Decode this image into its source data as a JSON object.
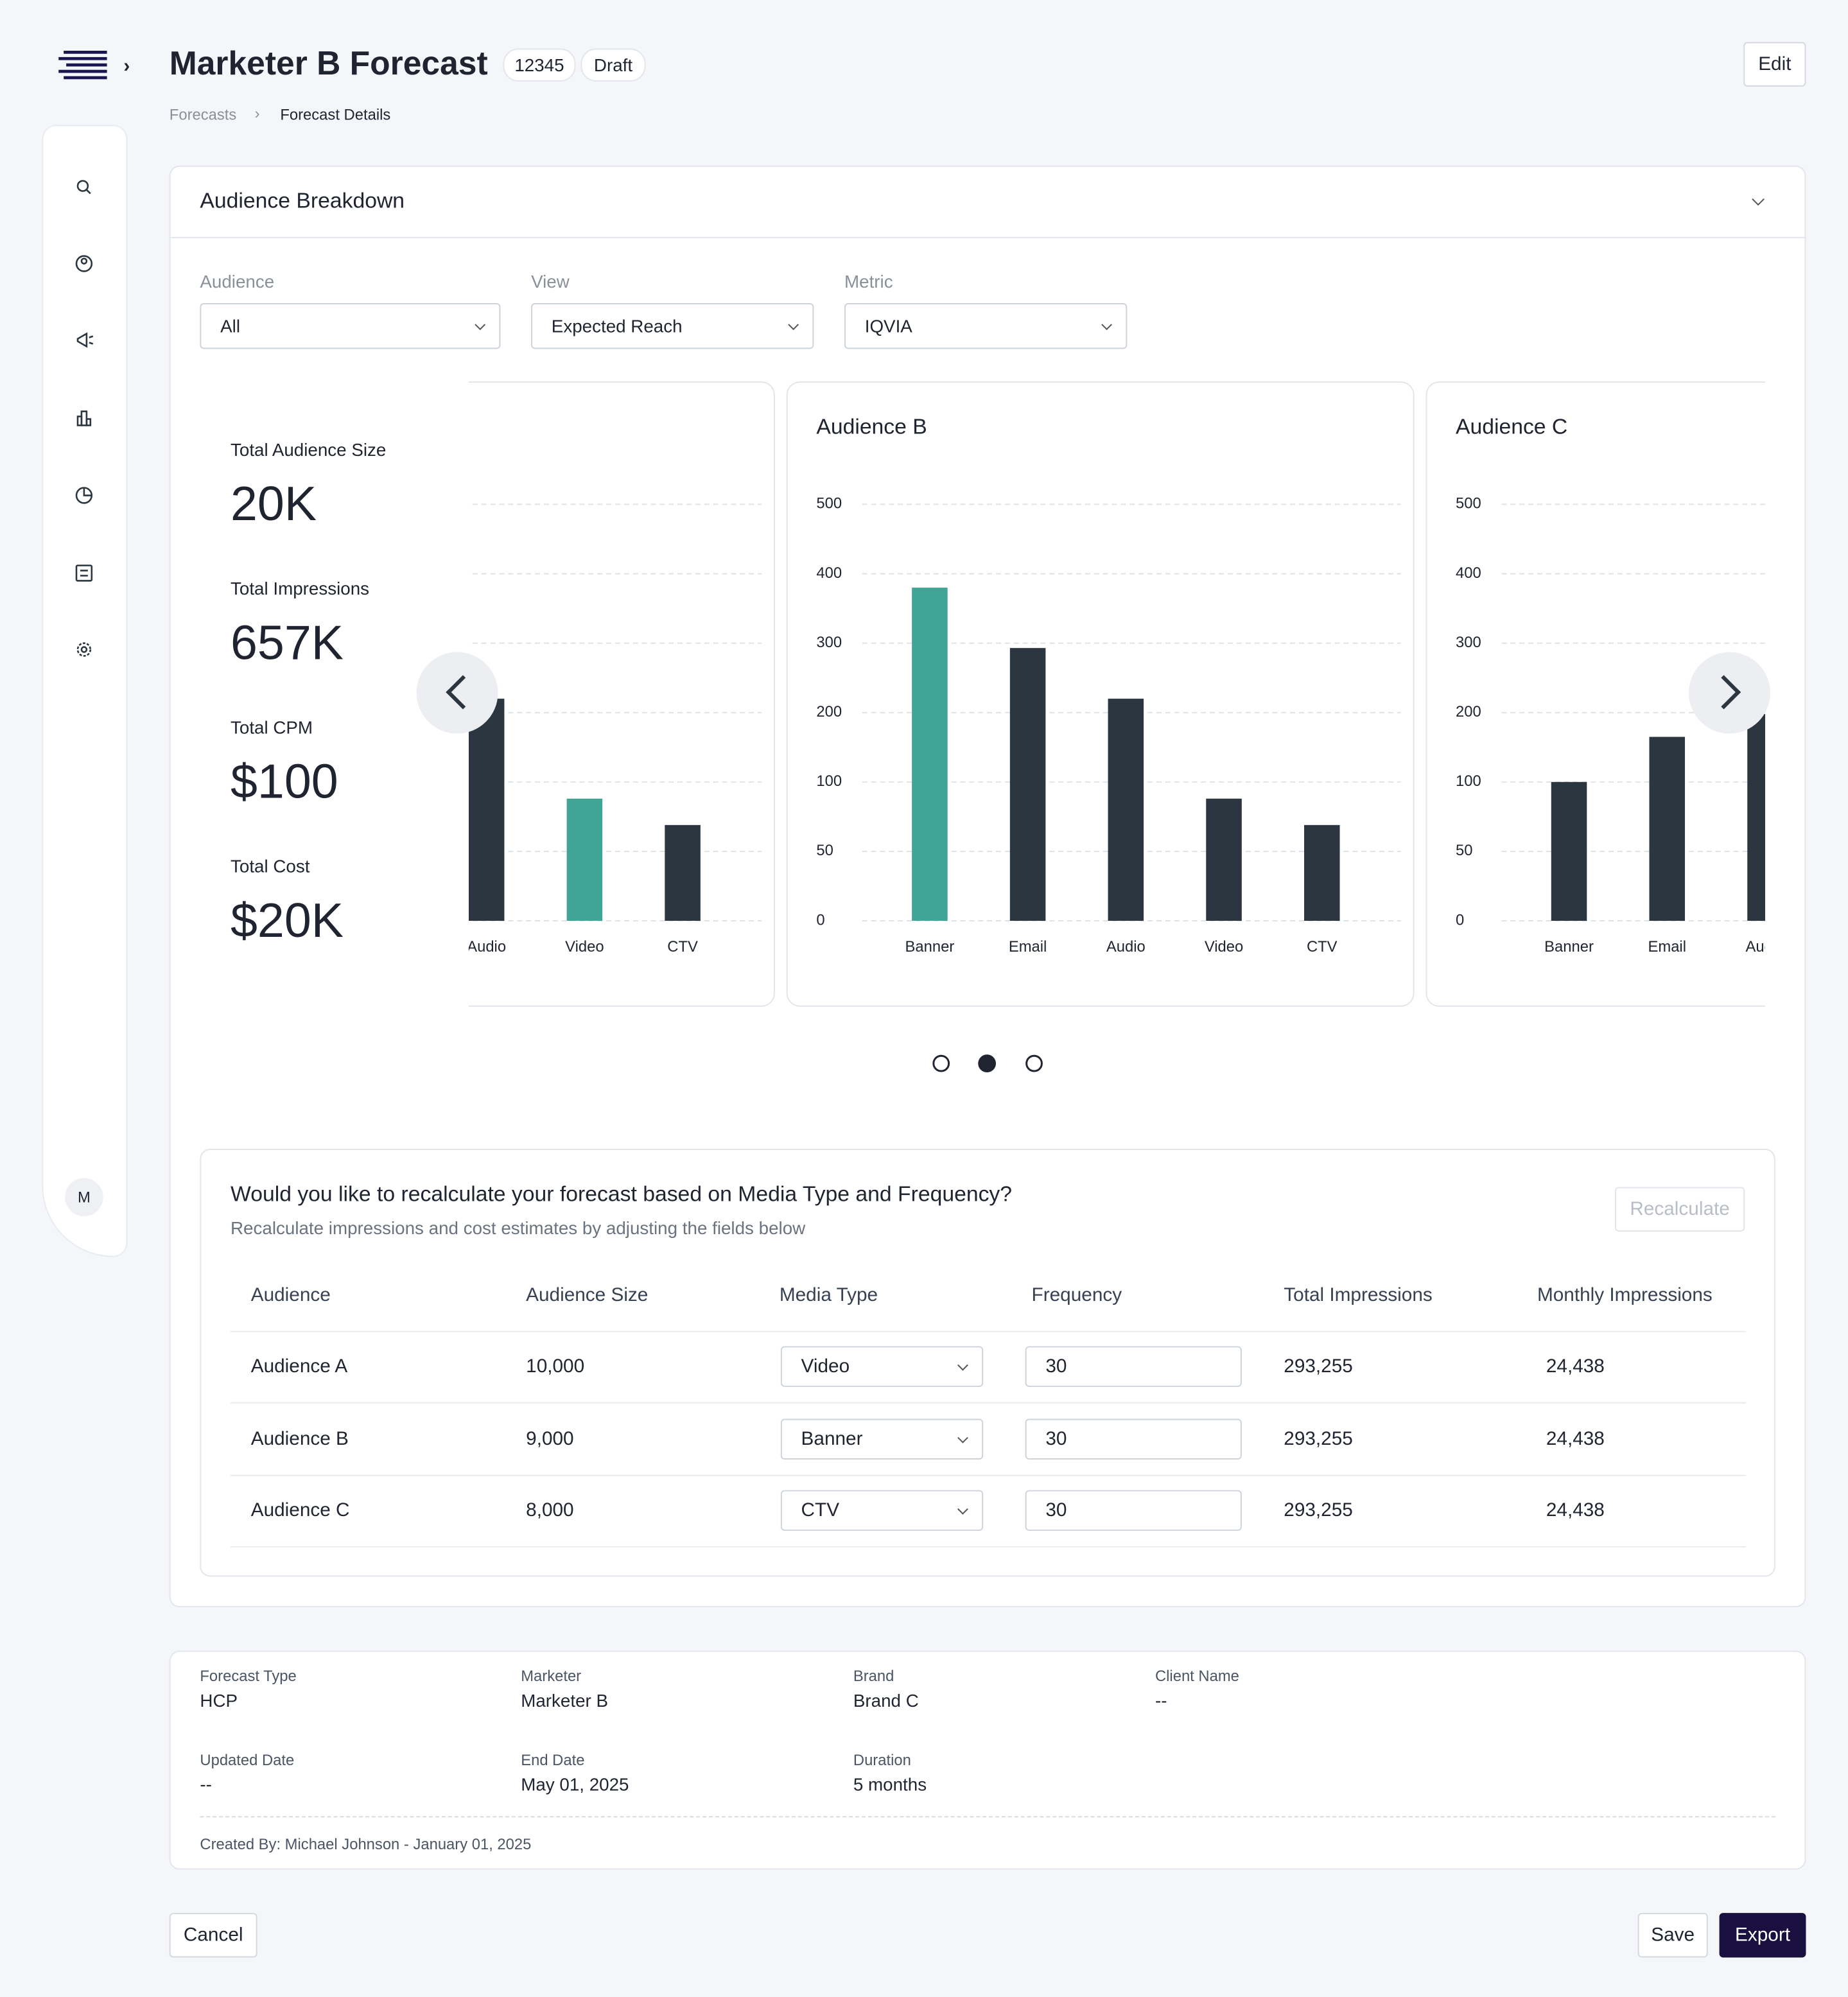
{
  "header": {
    "title": "Marketer B Forecast",
    "id": "12345",
    "status": "Draft",
    "edit": "Edit"
  },
  "breadcrumb": [
    "Forecasts",
    "Forecast Details"
  ],
  "sidebar": {
    "avatar": "M"
  },
  "panel": {
    "title": "Audience Breakdown"
  },
  "filters": [
    {
      "label": "Audience",
      "value": "All"
    },
    {
      "label": "View",
      "value": "Expected Reach"
    },
    {
      "label": "Metric",
      "value": "IQVIA"
    }
  ],
  "summary": [
    {
      "label": "Total Audience Size",
      "value": "20K"
    },
    {
      "label": "Total Impressions",
      "value": "657K"
    },
    {
      "label": "Total CPM",
      "value": "$100"
    },
    {
      "label": "Total Cost",
      "value": "$20K"
    }
  ],
  "chart_data": [
    {
      "type": "bar",
      "categories": [
        "Audio",
        "Video",
        "CTV"
      ],
      "values": [
        220,
        88,
        69
      ],
      "colors": [
        "#2b3640",
        "#40a594",
        "#2b3640"
      ],
      "ylim": [
        0,
        500
      ],
      "yticks": [
        0,
        50,
        100,
        200,
        300,
        400,
        500
      ],
      "grid": true
    },
    {
      "type": "bar",
      "title": "Audience B",
      "categories": [
        "Banner",
        "Email",
        "Audio",
        "Video",
        "CTV"
      ],
      "values": [
        380,
        293,
        220,
        88,
        69
      ],
      "colors": [
        "#40a594",
        "#2b3640",
        "#2b3640",
        "#2b3640",
        "#2b3640"
      ],
      "ylim": [
        0,
        500
      ],
      "yticks": [
        0,
        50,
        100,
        200,
        300,
        400,
        500
      ],
      "grid": true
    },
    {
      "type": "bar",
      "title": "Audience C",
      "categories": [
        "Banner",
        "Email",
        "Audio"
      ],
      "values": [
        100,
        165,
        198
      ],
      "colors": [
        "#2b3640",
        "#2b3640",
        "#2b3640"
      ],
      "ylim": [
        0,
        500
      ],
      "yticks": [
        0,
        50,
        100,
        200,
        300,
        400,
        500
      ],
      "grid": true
    }
  ],
  "recalculate": {
    "title": "Would you like to recalculate your forecast based on Media Type and Frequency?",
    "subtitle": "Recalculate impressions and cost estimates by adjusting the fields below",
    "button": "Recalculate",
    "table": {
      "columns": [
        "Audience",
        "Audience Size",
        "Media Type",
        "Frequency",
        "Total Impressions",
        "Monthly Impressions"
      ],
      "rows": [
        [
          "Audience A",
          "10,000",
          "Video",
          "30",
          "293,255",
          "24,438"
        ],
        [
          "Audience B",
          "9,000",
          "Banner",
          "30",
          "293,255",
          "24,438"
        ],
        [
          "Audience C",
          "8,000",
          "CTV",
          "30",
          "293,255",
          "24,438"
        ]
      ]
    }
  },
  "details": {
    "fields": [
      {
        "label": "Forecast Type",
        "value": "HCP"
      },
      {
        "label": "Marketer",
        "value": "Marketer B"
      },
      {
        "label": "Brand",
        "value": "Brand C"
      },
      {
        "label": "Client Name",
        "value": "--"
      },
      {
        "label": "Updated Date",
        "value": "--"
      },
      {
        "label": "End Date",
        "value": "May 01, 2025"
      },
      {
        "label": "Duration",
        "value": "5 months"
      }
    ],
    "created": "Created By: Michael Johnson - January 01, 2025"
  },
  "actions": {
    "cancel": "Cancel",
    "save": "Save",
    "export": "Export"
  }
}
